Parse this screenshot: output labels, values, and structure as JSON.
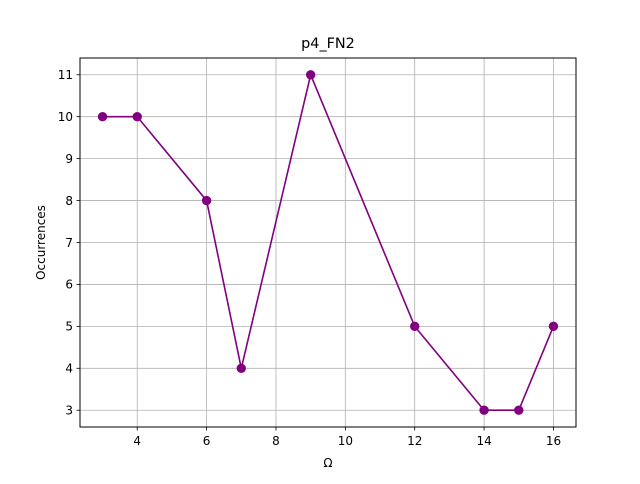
{
  "chart_data": {
    "type": "line",
    "title": "p4_FN2",
    "xlabel": "Ω",
    "ylabel": "Occurrences",
    "x": [
      3,
      4,
      6,
      7,
      9,
      12,
      14,
      15,
      16
    ],
    "series": [
      {
        "values": [
          10,
          10,
          8,
          4,
          11,
          5,
          3,
          3,
          5
        ]
      }
    ],
    "xlim": [
      2.35,
      16.65
    ],
    "ylim": [
      2.6,
      11.4
    ],
    "xticks": [
      4,
      6,
      8,
      10,
      12,
      14,
      16
    ],
    "yticks": [
      3,
      4,
      5,
      6,
      7,
      8,
      9,
      10,
      11
    ],
    "grid": true,
    "marker": "circle",
    "color": "#800080",
    "grid_color": "#b0b0b0"
  }
}
